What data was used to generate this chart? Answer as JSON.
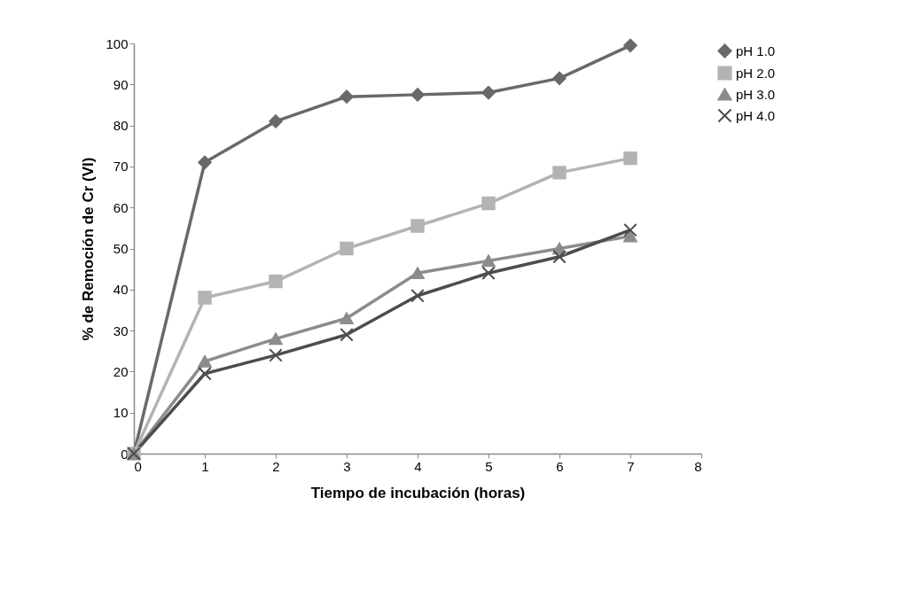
{
  "chart_data": {
    "type": "line",
    "xlabel": "Tiempo de incubación (horas)",
    "ylabel": "% de Remoción de Cr (VI)",
    "x": [
      0,
      1,
      2,
      3,
      4,
      5,
      6,
      7
    ],
    "series": [
      {
        "name": "pH 1.0",
        "color": "#696969",
        "marker": "diamond",
        "values": [
          0,
          71,
          81,
          87,
          87.5,
          88,
          91.5,
          99.5
        ]
      },
      {
        "name": "pH 2.0",
        "color": "#b3b3b3",
        "marker": "square",
        "values": [
          0,
          38,
          42,
          50,
          55.5,
          61,
          68.5,
          72
        ]
      },
      {
        "name": "pH 3.0",
        "color": "#8c8c8c",
        "marker": "triangle",
        "values": [
          0,
          22.5,
          28,
          33,
          44,
          47,
          50,
          53
        ]
      },
      {
        "name": "pH 4.0",
        "color": "#4d4d4d",
        "marker": "cross",
        "values": [
          0,
          19.5,
          24,
          29,
          38.5,
          44,
          48,
          54.5
        ]
      }
    ],
    "xlim": [
      0,
      8
    ],
    "xticks": [
      0,
      1,
      2,
      3,
      4,
      5,
      6,
      7,
      8
    ],
    "ylim": [
      0,
      100
    ],
    "yticks": [
      0,
      10,
      20,
      30,
      40,
      50,
      60,
      70,
      80,
      90,
      100
    ],
    "grid": false,
    "legend": "right",
    "line_style": "solid"
  }
}
